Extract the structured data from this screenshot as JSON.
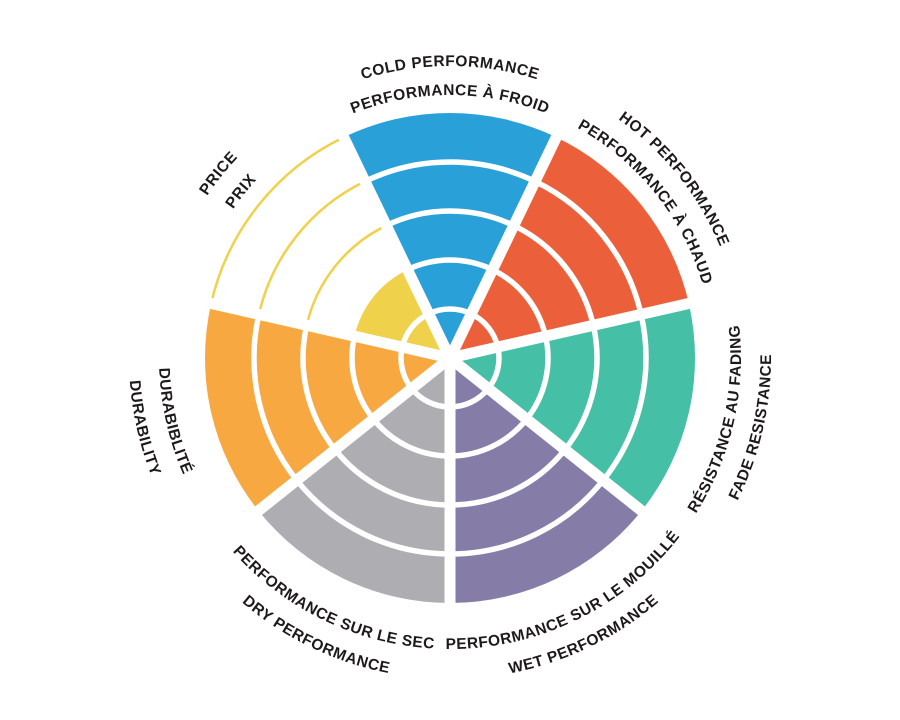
{
  "page": {
    "background": "#ffffff",
    "title": "Tire performance rating wheel"
  },
  "chart_data": {
    "type": "polar-sector-wheel",
    "max_rings": 5,
    "ring_separator_color": "#ffffff",
    "text_color": "#1e1a1b",
    "legend_position": "radial-outside",
    "sectors": [
      {
        "id": "cold",
        "label_en": "COLD PERFORMANCE",
        "label_fr": "PERFORMANCE À FROID",
        "color": "#2aa0d8",
        "value": 5
      },
      {
        "id": "hot",
        "label_en": "HOT PERFORMANCE",
        "label_fr": "PERFORMANCE À CHAUD",
        "color": "#ec5f3b",
        "value": 5
      },
      {
        "id": "fade",
        "label_en": "FADE RESISTANCE",
        "label_fr": "RÉSISTANCE AU FADING",
        "color": "#45bfa5",
        "value": 5
      },
      {
        "id": "wet",
        "label_en": "WET PERFORMANCE",
        "label_fr": "PERFORMANCE SUR LE MOUILLÉ",
        "color": "#857da8",
        "value": 5
      },
      {
        "id": "dry",
        "label_en": "DRY PERFORMANCE",
        "label_fr": "PERFORMANCE SUR LE SEC",
        "color": "#aeadb2",
        "value": 5
      },
      {
        "id": "durability",
        "label_en": "DURABILITY",
        "label_fr": "DURABIBLITÉ",
        "color": "#f7a840",
        "value": 5
      },
      {
        "id": "price",
        "label_en": "PRICE",
        "label_fr": "PRIX",
        "color": "#f0d14b",
        "value": 2,
        "unfilled_style": "outline-arcs"
      }
    ]
  }
}
